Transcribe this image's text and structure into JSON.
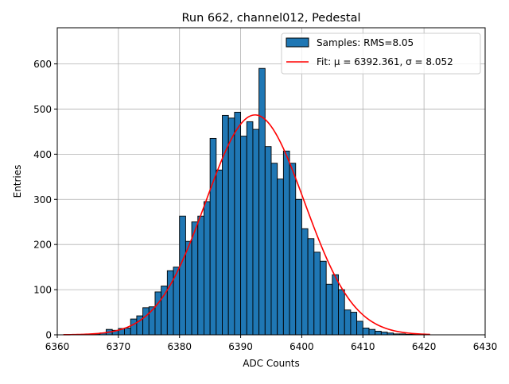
{
  "chart_data": {
    "type": "bar",
    "title": "Run 662, channel012, Pedestal",
    "xlabel": "ADC Counts",
    "ylabel": "Entries",
    "xlim": [
      6360,
      6430
    ],
    "ylim": [
      0,
      680
    ],
    "xticks": [
      6360,
      6370,
      6380,
      6390,
      6400,
      6410,
      6420,
      6430
    ],
    "yticks": [
      0,
      100,
      200,
      300,
      400,
      500,
      600
    ],
    "grid": true,
    "legend_position": "top-right",
    "colors": {
      "bars": "#1f77b4",
      "bar_edge": "#000000",
      "fit": "#ff0000",
      "grid": "#b0b0b0"
    },
    "histogram": {
      "name": "Samples: RMS=8.05",
      "bin_width": 1,
      "bin_start": 6366,
      "counts": [
        2,
        4,
        12,
        10,
        14,
        15,
        35,
        42,
        60,
        62,
        95,
        108,
        142,
        150,
        263,
        207,
        250,
        263,
        295,
        435,
        365,
        486,
        480,
        493,
        440,
        472,
        455,
        590,
        417,
        380,
        345,
        407,
        380,
        300,
        235,
        213,
        183,
        163,
        112,
        133,
        100,
        55,
        50,
        30,
        15,
        12,
        8,
        6,
        4,
        2,
        2,
        1,
        1,
        1
      ]
    },
    "fit": {
      "name": "Fit: μ = 6392.361, σ = 8.052",
      "mu": 6392.361,
      "sigma": 8.052,
      "amplitude": 487,
      "range": [
        6361,
        6421
      ]
    }
  }
}
